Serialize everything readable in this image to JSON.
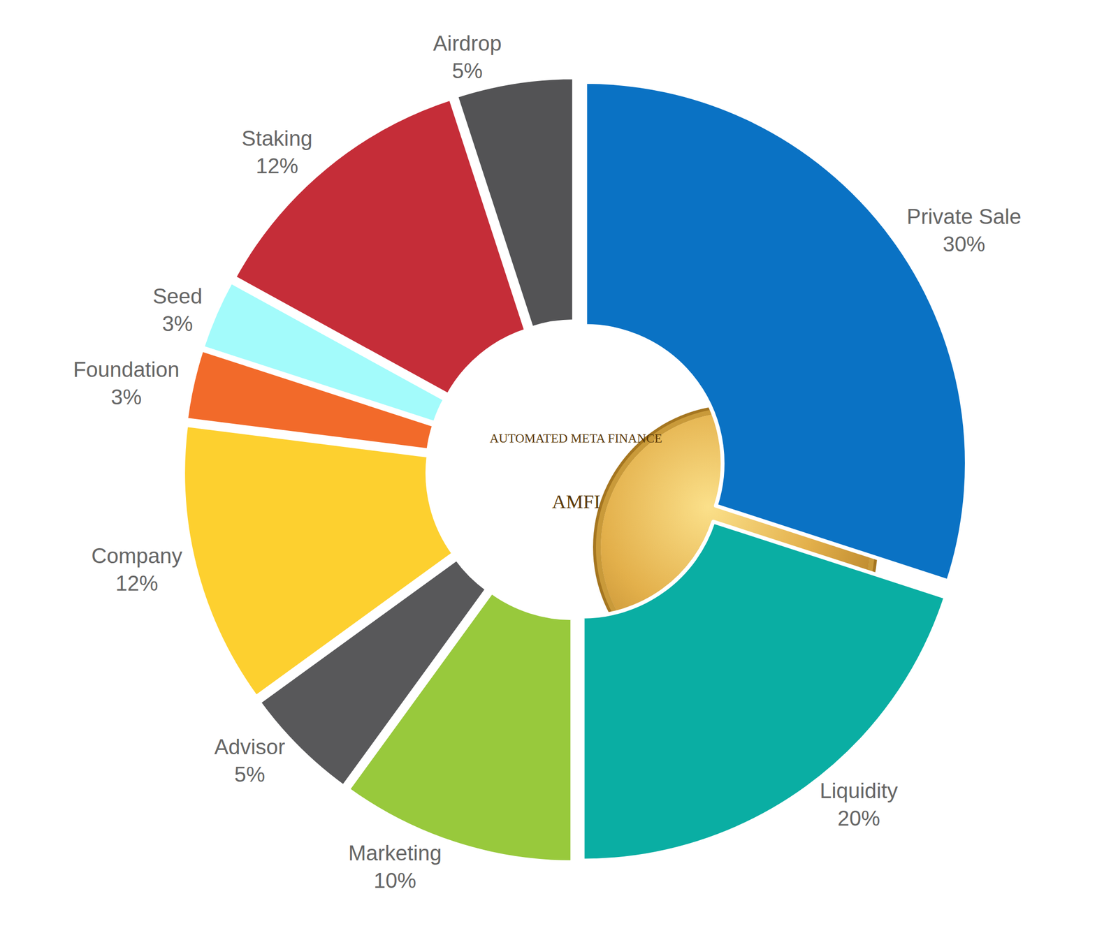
{
  "chart_data": {
    "type": "pie",
    "categories": [
      "Private Sale",
      "Liquidity",
      "Marketing",
      "Advisor",
      "Company",
      "Foundation",
      "Seed",
      "Staking",
      "Airdrop"
    ],
    "values": [
      30,
      20,
      10,
      5,
      12,
      3,
      3,
      12,
      5
    ],
    "value_labels": [
      "30%",
      "20%",
      "10%",
      "5%",
      "12%",
      "3%",
      "3%",
      "12%",
      "5%"
    ],
    "colors": [
      "#0a72c4",
      "#0aaea3",
      "#98c93c",
      "#58585a",
      "#fdd02f",
      "#f26a2a",
      "#a3fbfb",
      "#c52d38",
      "#535355"
    ],
    "annotations": [
      "AUTOMATED META FINANCE",
      "AMFI"
    ],
    "data_labels": true
  }
}
